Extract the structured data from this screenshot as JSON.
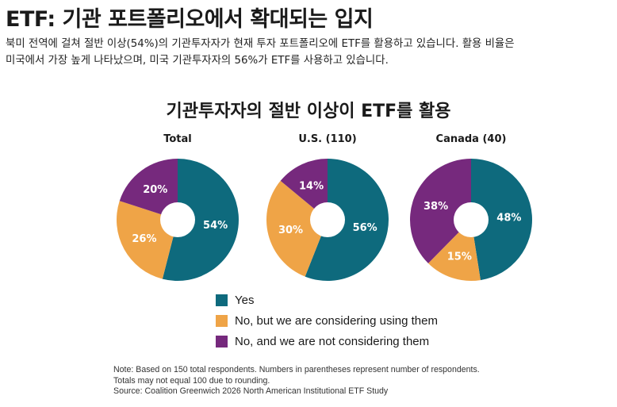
{
  "header": {
    "title": "ETF: 기관 포트폴리오에서 확대되는 입지",
    "intro_line1": "북미 전역에 걸쳐 절반 이상(54%)의 기관투자자가 현재 투자 포트폴리오에 ETF를 활용하고 있습니다. 활용 비율은",
    "intro_line2": "미국에서 가장 높게 나타났으며, 미국 기관투자자의 56%가 ETF를 사용하고 있습니다."
  },
  "colors": {
    "yes": "#0e6a7d",
    "considering": "#efa447",
    "not_considering": "#76297d"
  },
  "chart_data": {
    "type": "pie",
    "title": "기관투자자의 절반 이상이 ETF를 활용",
    "legend_position": "bottom",
    "series": [
      {
        "name": "Yes",
        "color_key": "yes"
      },
      {
        "name": "No, but we are considering using them",
        "color_key": "considering"
      },
      {
        "name": "No, and we are not considering them",
        "color_key": "not_considering"
      }
    ],
    "pies": [
      {
        "label": "Total",
        "values": [
          54,
          26,
          20
        ],
        "value_labels": [
          "54%",
          "26%",
          "20%"
        ]
      },
      {
        "label": "U.S. (110)",
        "values": [
          56,
          30,
          14
        ],
        "value_labels": [
          "56%",
          "30%",
          "14%"
        ]
      },
      {
        "label": "Canada (40)",
        "values": [
          48,
          15,
          38
        ],
        "value_labels": [
          "48%",
          "15%",
          "38%"
        ]
      }
    ]
  },
  "notes": {
    "line1": "Note: Based on 150 total respondents. Numbers in parentheses represent number of respondents.",
    "line2": "Totals may not equal 100 due to rounding.",
    "line3": "Source: Coalition Greenwich 2026 North American Institutional ETF Study"
  }
}
